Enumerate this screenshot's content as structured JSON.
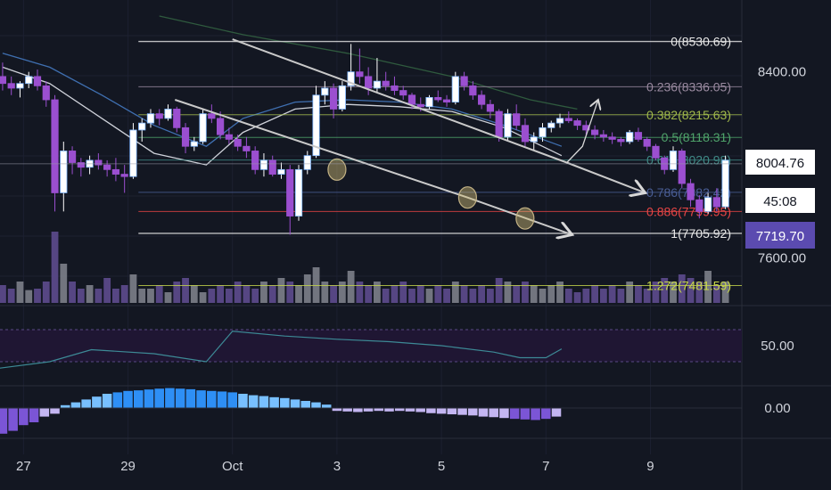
{
  "chart_data": [
    {
      "type": "candlestick",
      "title": "",
      "price_scale": {
        "min": 7560,
        "max": 8640,
        "ticks": [
          8400.0,
          7600.0
        ]
      },
      "x_ticks": [
        "27",
        "29",
        "Oct",
        "3",
        "5",
        "7",
        "9"
      ],
      "x_tick_positions_days": [
        0,
        2,
        4,
        6,
        8,
        10,
        12
      ],
      "x_range_days": [
        -0.45,
        13.75
      ],
      "first_candle_day": -0.4,
      "candle_step_days": 0.1667,
      "candles": [
        [
          8380,
          8440,
          8320,
          8350
        ],
        [
          8350,
          8380,
          8300,
          8330
        ],
        [
          8330,
          8360,
          8290,
          8350
        ],
        [
          8350,
          8400,
          8330,
          8380
        ],
        [
          8380,
          8410,
          8320,
          8340
        ],
        [
          8340,
          8360,
          8250,
          8280
        ],
        [
          8280,
          8300,
          7800,
          7880
        ],
        [
          7880,
          8100,
          7800,
          8060
        ],
        [
          8060,
          8080,
          7960,
          8010
        ],
        [
          8010,
          8030,
          7950,
          7990
        ],
        [
          7990,
          8040,
          7960,
          8020
        ],
        [
          8020,
          8050,
          7980,
          8000
        ],
        [
          8000,
          8020,
          7950,
          7980
        ],
        [
          7980,
          8030,
          7930,
          7960
        ],
        [
          7960,
          8000,
          7880,
          7950
        ],
        [
          7950,
          8180,
          7940,
          8150
        ],
        [
          8150,
          8200,
          8100,
          8180
        ],
        [
          8180,
          8240,
          8160,
          8220
        ],
        [
          8220,
          8240,
          8170,
          8200
        ],
        [
          8200,
          8260,
          8190,
          8240
        ],
        [
          8240,
          8250,
          8140,
          8160
        ],
        [
          8160,
          8180,
          8050,
          8080
        ],
        [
          8080,
          8120,
          8060,
          8100
        ],
        [
          8100,
          8240,
          8090,
          8220
        ],
        [
          8220,
          8260,
          8180,
          8200
        ],
        [
          8200,
          8230,
          8110,
          8130
        ],
        [
          8130,
          8160,
          8090,
          8110
        ],
        [
          8110,
          8130,
          8060,
          8080
        ],
        [
          8080,
          8120,
          8030,
          8060
        ],
        [
          8060,
          8080,
          7960,
          7980
        ],
        [
          7980,
          8050,
          7950,
          8020
        ],
        [
          8020,
          8040,
          7950,
          7960
        ],
        [
          7960,
          8010,
          7940,
          7980
        ],
        [
          7980,
          8000,
          7700,
          7780
        ],
        [
          7780,
          8000,
          7760,
          7980
        ],
        [
          7980,
          8060,
          7960,
          8040
        ],
        [
          8040,
          8340,
          8030,
          8300
        ],
        [
          8300,
          8360,
          8260,
          8330
        ],
        [
          8330,
          8350,
          8200,
          8240
        ],
        [
          8240,
          8360,
          8230,
          8340
        ],
        [
          8340,
          8520,
          8320,
          8400
        ],
        [
          8400,
          8500,
          8350,
          8380
        ],
        [
          8380,
          8420,
          8300,
          8330
        ],
        [
          8330,
          8460,
          8310,
          8360
        ],
        [
          8360,
          8400,
          8320,
          8340
        ],
        [
          8340,
          8380,
          8300,
          8320
        ],
        [
          8320,
          8340,
          8280,
          8300
        ],
        [
          8300,
          8310,
          8240,
          8260
        ],
        [
          8260,
          8290,
          8230,
          8250
        ],
        [
          8250,
          8300,
          8240,
          8290
        ],
        [
          8290,
          8320,
          8270,
          8280
        ],
        [
          8280,
          8300,
          8250,
          8270
        ],
        [
          8270,
          8400,
          8260,
          8380
        ],
        [
          8380,
          8400,
          8320,
          8340
        ],
        [
          8340,
          8360,
          8280,
          8300
        ],
        [
          8300,
          8320,
          8240,
          8260
        ],
        [
          8260,
          8280,
          8200,
          8230
        ],
        [
          8230,
          8240,
          8100,
          8120
        ],
        [
          8120,
          8240,
          8100,
          8220
        ],
        [
          8220,
          8260,
          8150,
          8170
        ],
        [
          8170,
          8200,
          8080,
          8100
        ],
        [
          8100,
          8140,
          8060,
          8120
        ],
        [
          8120,
          8180,
          8100,
          8160
        ],
        [
          8160,
          8190,
          8140,
          8180
        ],
        [
          8180,
          8220,
          8160,
          8200
        ],
        [
          8200,
          8230,
          8180,
          8190
        ],
        [
          8190,
          8200,
          8150,
          8170
        ],
        [
          8170,
          8190,
          8130,
          8150
        ],
        [
          8150,
          8170,
          8110,
          8130
        ],
        [
          8130,
          8150,
          8100,
          8120
        ],
        [
          8120,
          8140,
          8090,
          8110
        ],
        [
          8110,
          8120,
          8080,
          8100
        ],
        [
          8100,
          8150,
          8090,
          8140
        ],
        [
          8140,
          8160,
          8100,
          8110
        ],
        [
          8110,
          8120,
          8060,
          8080
        ],
        [
          8080,
          8090,
          8020,
          8030
        ],
        [
          8030,
          8040,
          7960,
          7980
        ],
        [
          7980,
          8080,
          7970,
          8060
        ],
        [
          8060,
          8070,
          7900,
          7920
        ],
        [
          7920,
          7940,
          7820,
          7850
        ],
        [
          7850,
          7870,
          7770,
          7800
        ],
        [
          7800,
          7880,
          7790,
          7860
        ],
        [
          7860,
          7900,
          7800,
          7820
        ],
        [
          7820,
          8040,
          7810,
          8020
        ]
      ],
      "volume": [
        0.25,
        0.2,
        0.3,
        0.18,
        0.2,
        0.3,
        1.0,
        0.55,
        0.3,
        0.2,
        0.25,
        0.2,
        0.35,
        0.2,
        0.25,
        0.4,
        0.2,
        0.2,
        0.25,
        0.15,
        0.3,
        0.35,
        0.25,
        0.15,
        0.2,
        0.25,
        0.2,
        0.3,
        0.25,
        0.2,
        0.3,
        0.25,
        0.35,
        0.3,
        0.25,
        0.4,
        0.5,
        0.3,
        0.25,
        0.3,
        0.45,
        0.3,
        0.25,
        0.3,
        0.2,
        0.25,
        0.3,
        0.2,
        0.25,
        0.2,
        0.25,
        0.2,
        0.3,
        0.25,
        0.2,
        0.25,
        0.2,
        0.35,
        0.3,
        0.25,
        0.3,
        0.25,
        0.2,
        0.25,
        0.3,
        0.2,
        0.15,
        0.2,
        0.25,
        0.2,
        0.25,
        0.2,
        0.3,
        0.25,
        0.2,
        0.3,
        0.35,
        0.3,
        0.4,
        0.35,
        0.3,
        0.45,
        0.25,
        0.3
      ],
      "moving_averages": [
        {
          "color": "#cfd2da",
          "points": [
            [
              -0.4,
              8420
            ],
            [
              0.5,
              8350
            ],
            [
              1.5,
              8200
            ],
            [
              2.5,
              8050
            ],
            [
              3.5,
              8000
            ],
            [
              4.2,
              8140
            ],
            [
              5.2,
              8240
            ],
            [
              6.2,
              8260
            ],
            [
              7.2,
              8250
            ],
            [
              8.2,
              8230
            ],
            [
              9.2,
              8160
            ],
            [
              10.3,
              8040
            ]
          ]
        },
        {
          "color": "#3f6fb0",
          "points": [
            [
              -0.4,
              8480
            ],
            [
              0.5,
              8420
            ],
            [
              1.5,
              8300
            ],
            [
              2.5,
              8170
            ],
            [
              3.5,
              8080
            ],
            [
              4.2,
              8200
            ],
            [
              5.2,
              8270
            ],
            [
              6.2,
              8280
            ],
            [
              7.2,
              8270
            ],
            [
              8.2,
              8240
            ],
            [
              9.2,
              8170
            ],
            [
              10.3,
              8080
            ]
          ]
        },
        {
          "color": "#2f5a3e",
          "points": [
            [
              2.6,
              8640
            ],
            [
              4.2,
              8560
            ],
            [
              6.2,
              8480
            ],
            [
              8.2,
              8380
            ],
            [
              9.7,
              8280
            ],
            [
              10.6,
              8240
            ]
          ]
        }
      ],
      "fib_levels": [
        {
          "label": "0(8530.69)",
          "price": 8530.69,
          "color": "#e8e8e8"
        },
        {
          "label": "0.236(8336.05)",
          "price": 8336.05,
          "color": "#9a8aa0"
        },
        {
          "label": "0.382(8215.63)",
          "price": 8215.63,
          "color": "#a0b84a"
        },
        {
          "label": "0.5(8118.31)",
          "price": 8118.31,
          "color": "#4fa36a"
        },
        {
          "label": "0.618(8020.98)",
          "price": 8020.98,
          "color": "#3f8a86"
        },
        {
          "label": "0.786(7882.42)",
          "price": 7882.42,
          "color": "#4a5e96"
        },
        {
          "label": "0.886(7799.95)",
          "price": 7799.95,
          "color": "#e84545"
        },
        {
          "label": "1(7705.92)",
          "price": 7705.92,
          "color": "#e8e8e8"
        },
        {
          "label": "1.272(7481.59)",
          "price": 7481.59,
          "color": "#c8d84a"
        }
      ],
      "trend_lines": [
        {
          "points": [
            [
              4.0,
              8540
            ],
            [
              10.4,
              8010
            ],
            [
              11.9,
              7880
            ]
          ],
          "color": "#c9c9c9"
        },
        {
          "points": [
            [
              2.9,
              8280
            ],
            [
              8.5,
              7860
            ],
            [
              10.5,
              7700
            ]
          ],
          "color": "#c9c9c9"
        }
      ],
      "projection_arrows": [
        {
          "points": [
            [
              10.4,
              8010
            ],
            [
              10.7,
              8080
            ],
            [
              11.0,
              8280
            ]
          ],
          "color": "#d8d8d8"
        }
      ],
      "ellipses_days": [
        [
          6.0,
          7980
        ],
        [
          8.5,
          7860
        ],
        [
          9.6,
          7770
        ]
      ],
      "price_labels": {
        "last_price": "8004.76",
        "countdown": "45:08",
        "level": "7719.70"
      },
      "last_price_value": 8004.76,
      "level_value": 7719.7
    },
    {
      "type": "line",
      "title": "",
      "ylim": [
        0,
        100
      ],
      "ticks": [
        "50.00"
      ],
      "band": [
        30,
        70
      ],
      "points_days": [
        [
          -0.45,
          22
        ],
        [
          0.5,
          30
        ],
        [
          1.3,
          45
        ],
        [
          2.5,
          40
        ],
        [
          3.5,
          30
        ],
        [
          4.0,
          68
        ],
        [
          5.0,
          62
        ],
        [
          6.0,
          58
        ],
        [
          7.0,
          55
        ],
        [
          8.0,
          50
        ],
        [
          9.0,
          42
        ],
        [
          9.5,
          35
        ],
        [
          10.0,
          35
        ],
        [
          10.3,
          46
        ]
      ]
    },
    {
      "type": "bar",
      "title": "",
      "ticks": [
        "0.00"
      ],
      "histogram_days": [
        [
          -0.4,
          -0.9
        ],
        [
          -0.2,
          -0.8
        ],
        [
          0,
          -0.6
        ],
        [
          0.2,
          -0.5
        ],
        [
          0.4,
          -0.3
        ],
        [
          0.6,
          -0.2
        ],
        [
          0.8,
          0.1
        ],
        [
          1.0,
          0.2
        ],
        [
          1.2,
          0.3
        ],
        [
          1.4,
          0.4
        ],
        [
          1.6,
          0.5
        ],
        [
          1.8,
          0.55
        ],
        [
          2.0,
          0.6
        ],
        [
          2.2,
          0.62
        ],
        [
          2.4,
          0.65
        ],
        [
          2.6,
          0.68
        ],
        [
          2.8,
          0.7
        ],
        [
          3.0,
          0.68
        ],
        [
          3.2,
          0.66
        ],
        [
          3.4,
          0.62
        ],
        [
          3.6,
          0.6
        ],
        [
          3.8,
          0.58
        ],
        [
          4.0,
          0.55
        ],
        [
          4.2,
          0.5
        ],
        [
          4.4,
          0.45
        ],
        [
          4.6,
          0.42
        ],
        [
          4.8,
          0.38
        ],
        [
          5.0,
          0.35
        ],
        [
          5.2,
          0.3
        ],
        [
          5.4,
          0.25
        ],
        [
          5.6,
          0.2
        ],
        [
          5.8,
          0.12
        ],
        [
          6.0,
          -0.1
        ],
        [
          6.2,
          -0.12
        ],
        [
          6.4,
          -0.14
        ],
        [
          6.6,
          -0.12
        ],
        [
          6.8,
          -0.1
        ],
        [
          7.0,
          -0.12
        ],
        [
          7.2,
          -0.1
        ],
        [
          7.4,
          -0.12
        ],
        [
          7.6,
          -0.14
        ],
        [
          7.8,
          -0.18
        ],
        [
          8.0,
          -0.2
        ],
        [
          8.2,
          -0.22
        ],
        [
          8.4,
          -0.24
        ],
        [
          8.6,
          -0.26
        ],
        [
          8.8,
          -0.3
        ],
        [
          9.0,
          -0.32
        ],
        [
          9.2,
          -0.35
        ],
        [
          9.4,
          -0.38
        ],
        [
          9.6,
          -0.4
        ],
        [
          9.8,
          -0.42
        ],
        [
          10.0,
          -0.38
        ],
        [
          10.2,
          -0.3
        ]
      ]
    }
  ]
}
